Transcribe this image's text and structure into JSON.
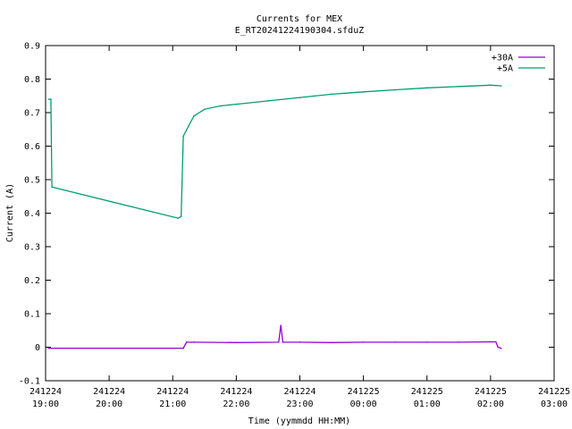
{
  "chart_data": {
    "type": "line",
    "title": "Currents for MEX",
    "subtitle": "E_RT20241224190304.sfduZ",
    "xlabel": "Time (yymmdd HH:MM)",
    "ylabel": "Current (A)",
    "ylim": [
      -0.1,
      0.9
    ],
    "yticks": [
      -0.1,
      0,
      0.1,
      0.2,
      0.3,
      0.4,
      0.5,
      0.6,
      0.7,
      0.8,
      0.9
    ],
    "ytick_labels": [
      "-0.1",
      "0",
      "0.1",
      "0.2",
      "0.3",
      "0.4",
      "0.5",
      "0.6",
      "0.7",
      "0.8",
      "0.9"
    ],
    "xlim": [
      "2024-12-24 19:00",
      "2024-12-25 03:00"
    ],
    "xticks": [
      {
        "date": "241224",
        "time": "19:00"
      },
      {
        "date": "241224",
        "time": "20:00"
      },
      {
        "date": "241224",
        "time": "21:00"
      },
      {
        "date": "241224",
        "time": "22:00"
      },
      {
        "date": "241224",
        "time": "23:00"
      },
      {
        "date": "241225",
        "time": "00:00"
      },
      {
        "date": "241225",
        "time": "01:00"
      },
      {
        "date": "241225",
        "time": "02:00"
      },
      {
        "date": "241225",
        "time": "03:00"
      }
    ],
    "grid": false,
    "legend": "top-right",
    "series": [
      {
        "name": "+30A",
        "color": "#9400d3",
        "x": [
          "19:03",
          "21:10",
          "21:13",
          "21:20",
          "22:00",
          "22:40",
          "22:42",
          "22:44",
          "23:00",
          "23:30",
          "00:00",
          "00:30",
          "01:00",
          "01:30",
          "02:00",
          "02:05",
          "02:07",
          "02:10"
        ],
        "y": [
          -0.003,
          -0.003,
          0.015,
          0.015,
          0.014,
          0.015,
          0.065,
          0.015,
          0.015,
          0.014,
          0.015,
          0.015,
          0.015,
          0.015,
          0.016,
          0.016,
          0.0,
          -0.003
        ]
      },
      {
        "name": "+5A",
        "color": "#009e73",
        "x": [
          "19:03",
          "19:05",
          "19:06",
          "21:05",
          "21:08",
          "21:10",
          "21:15",
          "21:20",
          "21:30",
          "21:45",
          "22:00",
          "22:30",
          "23:00",
          "23:30",
          "00:00",
          "00:30",
          "01:00",
          "01:30",
          "02:00",
          "02:10"
        ],
        "y": [
          0.74,
          0.74,
          0.478,
          0.385,
          0.39,
          0.63,
          0.66,
          0.69,
          0.71,
          0.72,
          0.725,
          0.735,
          0.745,
          0.755,
          0.762,
          0.768,
          0.774,
          0.778,
          0.782,
          0.78
        ]
      }
    ]
  }
}
